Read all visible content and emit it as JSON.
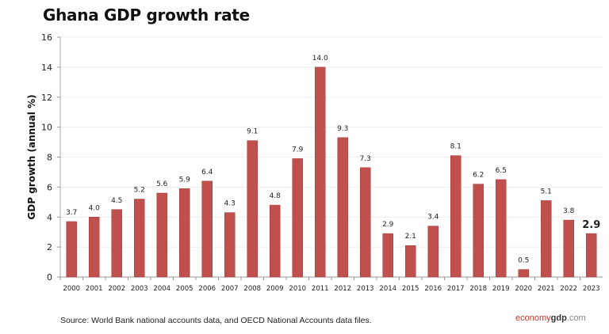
{
  "chart_data": {
    "type": "bar",
    "title": "Ghana GDP growth rate",
    "ylabel": "GDP growth (annual %)",
    "xlabel": "",
    "ylim": [
      0,
      16
    ],
    "yticks": [
      0,
      2,
      4,
      6,
      8,
      10,
      12,
      14,
      16
    ],
    "grid": true,
    "categories": [
      "2000",
      "2001",
      "2002",
      "2003",
      "2004",
      "2005",
      "2006",
      "2007",
      "2008",
      "2009",
      "2010",
      "2011",
      "2012",
      "2013",
      "2014",
      "2015",
      "2016",
      "2017",
      "2018",
      "2019",
      "2020",
      "2021",
      "2022",
      "2023"
    ],
    "values": [
      3.7,
      4.0,
      4.5,
      5.2,
      5.6,
      5.9,
      6.4,
      4.3,
      9.1,
      4.8,
      7.9,
      14.0,
      9.3,
      7.3,
      2.9,
      2.1,
      3.4,
      8.1,
      6.2,
      6.5,
      0.5,
      5.1,
      3.8,
      2.9
    ],
    "bar_color": "#c0504d",
    "highlight_last_label": true
  },
  "footer": {
    "source": "Source:  World Bank national accounts data, and OECD National Accounts data files.",
    "logo_part1": "economy",
    "logo_part2": "gdp",
    "logo_part3": ".com"
  }
}
